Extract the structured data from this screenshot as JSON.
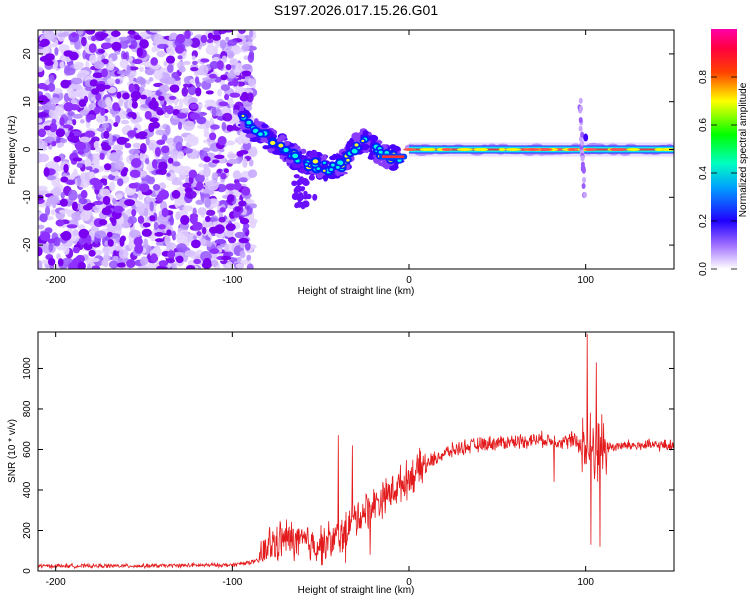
{
  "title": "S197.2026.017.15.26.G01",
  "chart_data": [
    {
      "type": "heatmap",
      "name": "spectrogram",
      "xlabel": "Height of straight line (km)",
      "ylabel": "Frequency (Hz)",
      "xlim": [
        -210,
        150
      ],
      "ylim": [
        -25,
        25
      ],
      "xticks": [
        -200,
        -100,
        0,
        100
      ],
      "yticks": [
        20,
        10,
        0,
        -10,
        -20
      ],
      "colorbar": {
        "label": "Normalized spectral amplitude",
        "range": [
          0,
          1
        ],
        "ticks": [
          0.0,
          0.2,
          0.4,
          0.6,
          0.8
        ],
        "colors": [
          "#ffffff",
          "#7b00ff",
          "#0000ff",
          "#00ffff",
          "#00ff00",
          "#ffff00",
          "#ff0000",
          "#ff00aa"
        ]
      },
      "features": {
        "noise_region_x": [
          -210,
          -92
        ],
        "scatter_segment": [
          [
            -95,
            7
          ],
          [
            -88,
            4
          ],
          [
            -80,
            2.5
          ],
          [
            -72,
            0.5
          ],
          [
            -65,
            -1.5
          ],
          [
            -55,
            -3
          ],
          [
            -45,
            -4
          ],
          [
            -38,
            -3
          ],
          [
            -32,
            0
          ],
          [
            -26,
            2
          ],
          [
            -20,
            0
          ],
          [
            -12,
            -1.5
          ],
          [
            -5,
            -1.5
          ]
        ],
        "carrier_line": {
          "x": [
            0,
            150
          ],
          "freq": 0
        },
        "spur_x": 100
      }
    },
    {
      "type": "line",
      "name": "snr",
      "xlabel": "Height of straight line (km)",
      "ylabel": "SNR (10 * v/v)",
      "xlim": [
        -210,
        150
      ],
      "ylim": [
        0,
        1180
      ],
      "xticks": [
        -200,
        -100,
        0,
        100
      ],
      "yticks": [
        0,
        200,
        400,
        600,
        800,
        1000
      ],
      "color": "#e31a1c",
      "trend": [
        [
          -210,
          25
        ],
        [
          -150,
          25
        ],
        [
          -100,
          30
        ],
        [
          -85,
          50
        ],
        [
          -80,
          120
        ],
        [
          -70,
          160
        ],
        [
          -60,
          140
        ],
        [
          -50,
          130
        ],
        [
          -40,
          160
        ],
        [
          -30,
          260
        ],
        [
          -20,
          330
        ],
        [
          -10,
          390
        ],
        [
          0,
          460
        ],
        [
          10,
          530
        ],
        [
          20,
          580
        ],
        [
          30,
          610
        ],
        [
          45,
          630
        ],
        [
          60,
          640
        ],
        [
          75,
          650
        ],
        [
          85,
          640
        ],
        [
          95,
          640
        ],
        [
          100,
          600
        ],
        [
          110,
          610
        ],
        [
          125,
          620
        ],
        [
          150,
          620
        ]
      ],
      "spikes": [
        [
          -40,
          670
        ],
        [
          -36,
          40
        ],
        [
          -32,
          620
        ],
        [
          -22,
          80
        ],
        [
          82,
          440
        ],
        [
          101,
          1170
        ],
        [
          103,
          130
        ],
        [
          106,
          1030
        ],
        [
          108,
          120
        ]
      ]
    }
  ]
}
